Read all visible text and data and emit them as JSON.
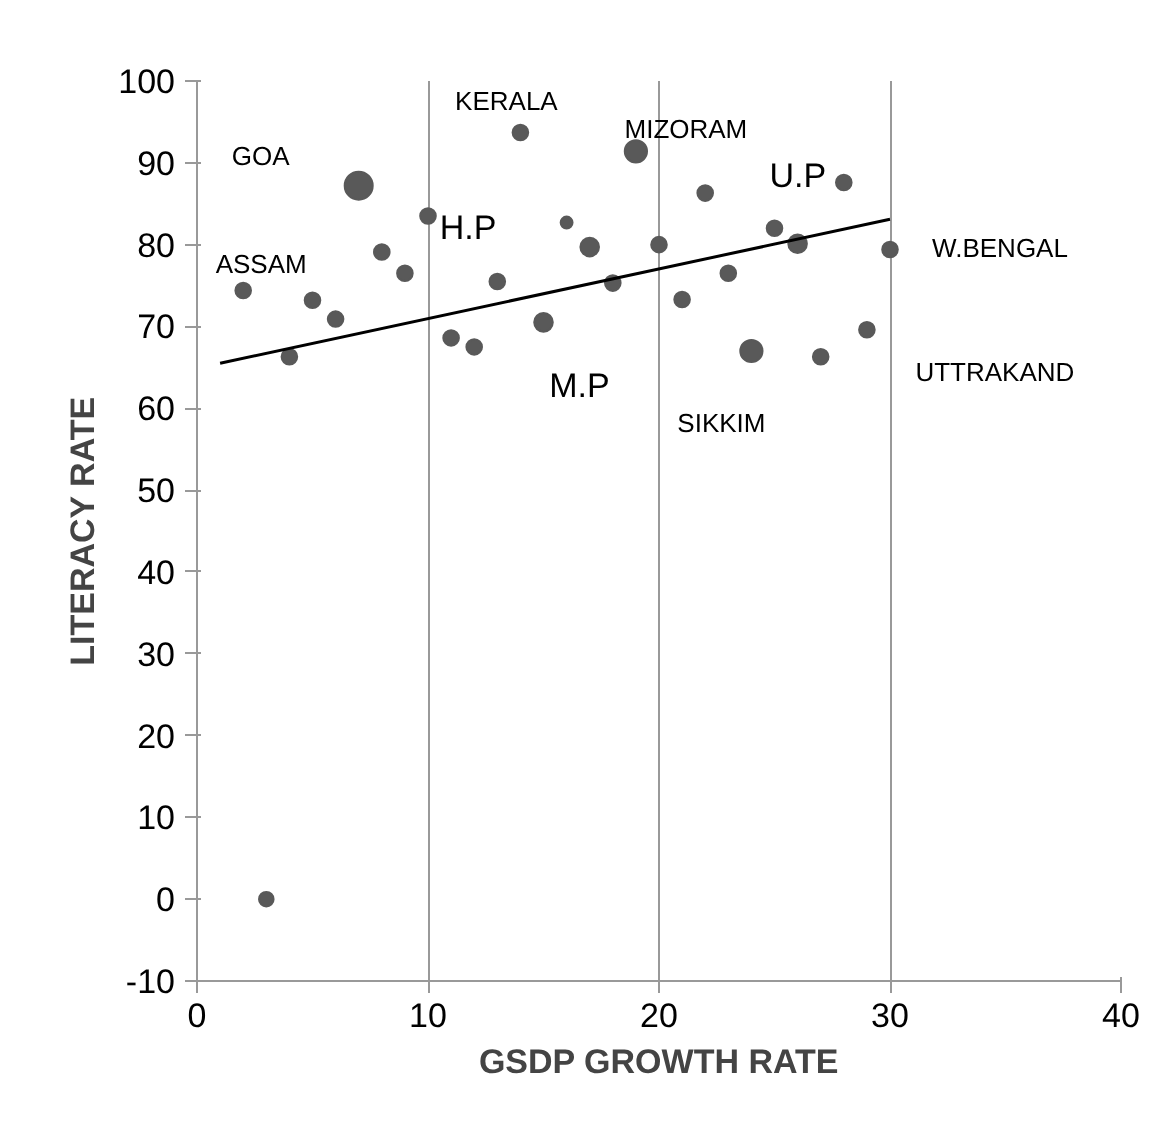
{
  "chart_data": {
    "type": "bubble",
    "xlabel": "GSDP GROWTH RATE",
    "ylabel": "LITERACY RATE",
    "xlim": [
      0,
      40
    ],
    "ylim": [
      -10,
      100
    ],
    "xticks": [
      0,
      10,
      20,
      30,
      40
    ],
    "yticks": [
      -10,
      0,
      10,
      20,
      30,
      40,
      50,
      60,
      70,
      80,
      90,
      100
    ],
    "grid": "x",
    "series": [
      {
        "color": "#595959",
        "x": [
          2,
          3,
          4,
          5,
          6,
          7,
          8,
          9,
          10,
          11,
          12,
          13,
          14,
          15,
          16,
          17,
          18,
          19,
          20,
          21,
          22,
          23,
          24,
          25,
          26,
          27,
          28,
          29,
          30
        ],
        "values": [
          74.4,
          0,
          66.3,
          73.2,
          70.9,
          87.2,
          79.1,
          76.5,
          83.5,
          68.6,
          67.5,
          75.5,
          93.7,
          70.5,
          82.7,
          79.7,
          75.3,
          91.4,
          80.0,
          73.3,
          86.3,
          76.5,
          67.0,
          82.0,
          80.1,
          66.3,
          87.6,
          69.6,
          79.4
        ],
        "sizes": [
          0.31,
          0.27,
          0.31,
          0.31,
          0.31,
          1,
          0.31,
          0.31,
          0.31,
          0.31,
          0.31,
          0.31,
          0.31,
          0.44,
          0.18,
          0.44,
          0.31,
          0.63,
          0.31,
          0.31,
          0.31,
          0.31,
          0.63,
          0.31,
          0.44,
          0.31,
          0.31,
          0.31,
          0.31
        ]
      },
      {
        "type": "line",
        "color": "#000000",
        "x": [
          1,
          30
        ],
        "values": [
          65.5,
          83.1
        ]
      }
    ],
    "annotations": [
      {
        "text": "ASSAM",
        "x": 2,
        "y": 74.4
      },
      {
        "text": "GOA",
        "x": 7,
        "y": 87.2
      },
      {
        "text": "H.P",
        "x": 10,
        "y": 83.5
      },
      {
        "text": "KERALA",
        "x": 14,
        "y": 93.7
      },
      {
        "text": "M.P",
        "x": 15,
        "y": 70.5
      },
      {
        "text": "MIZORAM",
        "x": 19,
        "y": 91.4
      },
      {
        "text": "SIKKIM",
        "x": 24,
        "y": 67.0
      },
      {
        "text": "U.P",
        "x": 28,
        "y": 87.6
      },
      {
        "text": "UTTRAKAND",
        "x": 29,
        "y": 69.6
      },
      {
        "text": "W.BENGAL",
        "x": 30,
        "y": 79.4
      }
    ]
  }
}
